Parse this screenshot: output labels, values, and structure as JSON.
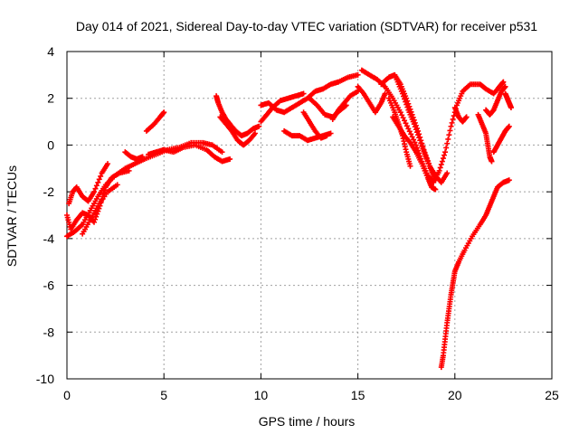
{
  "chart_data": {
    "type": "scatter",
    "title": "Day 014 of 2021, Sidereal Day-to-day VTEC variation (SDTVAR) for receiver p531",
    "xlabel": "GPS time / hours",
    "ylabel": "SDTVAR / TECUs",
    "xlim": [
      0,
      25
    ],
    "ylim": [
      -10,
      4
    ],
    "xticks": [
      0,
      5,
      10,
      15,
      20,
      25
    ],
    "yticks": [
      -10,
      -8,
      -6,
      -4,
      -2,
      0,
      2,
      4
    ],
    "grid": true,
    "marker": "+",
    "color": "#ff0000",
    "series": [
      {
        "tracks": [
          [
            [
              0.0,
              -3.0
            ],
            [
              0.2,
              -3.6
            ],
            [
              0.5,
              -3.2
            ],
            [
              0.8,
              -2.9
            ],
            [
              1.1,
              -3.0
            ],
            [
              1.4,
              -3.3
            ],
            [
              1.7,
              -2.6
            ],
            [
              2.0,
              -1.8
            ],
            [
              2.3,
              -1.4
            ],
            [
              2.7,
              -1.2
            ],
            [
              3.2,
              -1.1
            ]
          ],
          [
            [
              0.0,
              -3.9
            ],
            [
              0.4,
              -3.7
            ],
            [
              0.8,
              -3.4
            ],
            [
              1.2,
              -2.8
            ],
            [
              1.6,
              -2.2
            ],
            [
              2.0,
              -1.7
            ],
            [
              2.5,
              -1.3
            ],
            [
              3.0,
              -1.0
            ],
            [
              3.5,
              -0.8
            ],
            [
              4.0,
              -0.6
            ],
            [
              4.6,
              -0.4
            ],
            [
              5.2,
              -0.2
            ],
            [
              5.8,
              -0.1
            ],
            [
              6.4,
              0.1
            ],
            [
              7.0,
              0.1
            ],
            [
              7.5,
              0.0
            ],
            [
              8.0,
              -0.3
            ]
          ],
          [
            [
              0.1,
              -2.5
            ],
            [
              0.3,
              -2.0
            ],
            [
              0.5,
              -1.8
            ],
            [
              0.8,
              -2.2
            ],
            [
              1.1,
              -2.4
            ],
            [
              1.4,
              -2.0
            ],
            [
              1.8,
              -1.2
            ],
            [
              2.1,
              -0.8
            ]
          ],
          [
            [
              0.8,
              -3.8
            ],
            [
              1.2,
              -3.2
            ],
            [
              1.6,
              -2.6
            ],
            [
              2.1,
              -2.0
            ],
            [
              2.6,
              -1.7
            ]
          ],
          [
            [
              3.0,
              -0.3
            ],
            [
              3.3,
              -0.5
            ],
            [
              3.6,
              -0.6
            ],
            [
              3.9,
              -0.5
            ]
          ],
          [
            [
              4.2,
              -0.4
            ],
            [
              4.6,
              -0.3
            ],
            [
              5.0,
              -0.2
            ],
            [
              5.5,
              -0.3
            ],
            [
              6.0,
              -0.1
            ],
            [
              6.6,
              0.0
            ],
            [
              7.2,
              -0.2
            ],
            [
              7.6,
              -0.5
            ],
            [
              8.0,
              -0.7
            ],
            [
              8.4,
              -0.6
            ]
          ],
          [
            [
              4.1,
              0.6
            ],
            [
              4.5,
              0.9
            ],
            [
              4.8,
              1.2
            ],
            [
              5.0,
              1.4
            ]
          ],
          [
            [
              7.7,
              2.1
            ],
            [
              7.8,
              1.8
            ],
            [
              8.0,
              1.4
            ],
            [
              8.2,
              1.1
            ],
            [
              8.4,
              0.9
            ],
            [
              8.7,
              0.6
            ],
            [
              9.0,
              0.4
            ],
            [
              9.3,
              0.5
            ],
            [
              9.6,
              0.7
            ],
            [
              9.9,
              0.8
            ]
          ],
          [
            [
              7.9,
              1.2
            ],
            [
              8.2,
              0.9
            ],
            [
              8.5,
              0.6
            ],
            [
              8.8,
              0.2
            ],
            [
              9.1,
              0.0
            ],
            [
              9.4,
              0.2
            ],
            [
              9.7,
              0.5
            ]
          ],
          [
            [
              10.0,
              1.0
            ],
            [
              10.3,
              1.3
            ],
            [
              10.6,
              1.6
            ],
            [
              11.0,
              1.9
            ],
            [
              11.4,
              2.0
            ],
            [
              11.8,
              2.1
            ],
            [
              12.2,
              2.2
            ]
          ],
          [
            [
              10.0,
              1.7
            ],
            [
              10.4,
              1.8
            ],
            [
              10.8,
              1.5
            ],
            [
              11.2,
              1.4
            ],
            [
              11.6,
              1.6
            ],
            [
              12.0,
              1.8
            ],
            [
              12.4,
              2.0
            ],
            [
              12.8,
              2.3
            ],
            [
              13.2,
              2.4
            ],
            [
              13.6,
              2.6
            ],
            [
              14.0,
              2.7
            ],
            [
              14.5,
              2.9
            ],
            [
              15.0,
              3.0
            ]
          ],
          [
            [
              11.2,
              0.6
            ],
            [
              11.6,
              0.4
            ],
            [
              12.0,
              0.4
            ],
            [
              12.4,
              0.2
            ],
            [
              12.8,
              0.3
            ],
            [
              13.2,
              0.4
            ],
            [
              13.6,
              0.5
            ]
          ],
          [
            [
              12.2,
              1.4
            ],
            [
              12.5,
              1.0
            ],
            [
              12.8,
              0.6
            ],
            [
              13.1,
              0.3
            ],
            [
              13.4,
              0.4
            ]
          ],
          [
            [
              12.5,
              2.0
            ],
            [
              12.9,
              1.7
            ],
            [
              13.3,
              1.3
            ],
            [
              13.7,
              1.2
            ],
            [
              14.1,
              1.5
            ],
            [
              14.4,
              1.7
            ]
          ],
          [
            [
              13.7,
              1.1
            ],
            [
              14.0,
              1.5
            ],
            [
              14.3,
              1.8
            ],
            [
              14.6,
              2.1
            ],
            [
              15.0,
              2.3
            ]
          ],
          [
            [
              15.0,
              2.5
            ],
            [
              15.3,
              2.2
            ],
            [
              15.6,
              1.8
            ],
            [
              15.9,
              1.4
            ],
            [
              16.2,
              1.8
            ],
            [
              16.4,
              2.2
            ]
          ],
          [
            [
              15.2,
              3.2
            ],
            [
              15.6,
              3.0
            ],
            [
              16.0,
              2.8
            ],
            [
              16.4,
              2.5
            ],
            [
              16.8,
              2.0
            ],
            [
              17.2,
              1.4
            ],
            [
              17.6,
              0.7
            ],
            [
              18.0,
              0.0
            ],
            [
              18.3,
              -0.7
            ],
            [
              18.6,
              -1.3
            ],
            [
              18.9,
              -1.6
            ],
            [
              19.2,
              -1.1
            ],
            [
              19.5,
              -0.3
            ],
            [
              19.8,
              0.8
            ],
            [
              20.1,
              1.7
            ],
            [
              20.4,
              2.3
            ],
            [
              20.8,
              2.6
            ],
            [
              21.3,
              2.6
            ],
            [
              21.6,
              2.4
            ],
            [
              22.0,
              2.2
            ],
            [
              22.3,
              2.5
            ],
            [
              22.5,
              2.7
            ]
          ],
          [
            [
              16.2,
              2.6
            ],
            [
              16.6,
              2.9
            ],
            [
              16.9,
              3.0
            ],
            [
              17.2,
              2.6
            ],
            [
              17.5,
              2.0
            ],
            [
              17.8,
              1.3
            ],
            [
              18.1,
              0.6
            ],
            [
              18.4,
              -0.2
            ],
            [
              18.7,
              -0.9
            ],
            [
              19.0,
              -1.3
            ],
            [
              19.3,
              -1.6
            ],
            [
              19.6,
              -1.2
            ]
          ],
          [
            [
              16.6,
              2.0
            ],
            [
              16.9,
              1.4
            ],
            [
              17.1,
              0.9
            ],
            [
              17.3,
              0.4
            ],
            [
              17.5,
              -0.3
            ],
            [
              17.7,
              -0.9
            ]
          ],
          [
            [
              17.0,
              2.8
            ],
            [
              17.3,
              2.2
            ],
            [
              17.6,
              1.5
            ],
            [
              17.9,
              0.9
            ],
            [
              18.2,
              0.2
            ],
            [
              18.5,
              -0.5
            ],
            [
              18.8,
              -1.1
            ],
            [
              19.0,
              -1.5
            ]
          ],
          [
            [
              16.8,
              1.2
            ],
            [
              17.1,
              0.8
            ],
            [
              17.4,
              0.4
            ],
            [
              17.7,
              0.1
            ],
            [
              18.0,
              -0.3
            ],
            [
              18.3,
              -0.8
            ],
            [
              18.6,
              -1.4
            ],
            [
              18.8,
              -1.8
            ],
            [
              19.0,
              -1.9
            ]
          ],
          [
            [
              20.0,
              1.6
            ],
            [
              20.2,
              1.2
            ],
            [
              20.4,
              1.0
            ],
            [
              20.6,
              1.2
            ]
          ],
          [
            [
              21.2,
              1.3
            ],
            [
              21.4,
              0.9
            ],
            [
              21.6,
              0.5
            ],
            [
              21.7,
              0.0
            ],
            [
              21.8,
              -0.5
            ],
            [
              21.9,
              -0.7
            ]
          ],
          [
            [
              22.0,
              -0.3
            ],
            [
              22.2,
              0.0
            ],
            [
              22.4,
              0.3
            ],
            [
              22.6,
              0.6
            ],
            [
              22.8,
              0.8
            ]
          ],
          [
            [
              21.6,
              1.5
            ],
            [
              21.8,
              1.3
            ],
            [
              22.0,
              1.5
            ],
            [
              22.2,
              1.9
            ],
            [
              22.4,
              2.3
            ],
            [
              22.6,
              2.5
            ]
          ],
          [
            [
              22.6,
              2.2
            ],
            [
              22.7,
              2.0
            ],
            [
              22.8,
              1.8
            ],
            [
              22.9,
              1.6
            ]
          ],
          [
            [
              19.3,
              -9.5
            ],
            [
              19.4,
              -9.0
            ],
            [
              19.5,
              -8.3
            ],
            [
              19.6,
              -7.6
            ],
            [
              19.7,
              -7.0
            ],
            [
              19.8,
              -6.4
            ],
            [
              19.9,
              -5.9
            ],
            [
              20.0,
              -5.4
            ],
            [
              20.2,
              -5.0
            ],
            [
              20.5,
              -4.5
            ],
            [
              20.9,
              -3.9
            ],
            [
              21.3,
              -3.4
            ],
            [
              21.6,
              -3.0
            ],
            [
              21.8,
              -2.6
            ],
            [
              22.0,
              -2.2
            ],
            [
              22.2,
              -1.8
            ],
            [
              22.5,
              -1.6
            ],
            [
              22.8,
              -1.5
            ]
          ]
        ]
      }
    ]
  }
}
